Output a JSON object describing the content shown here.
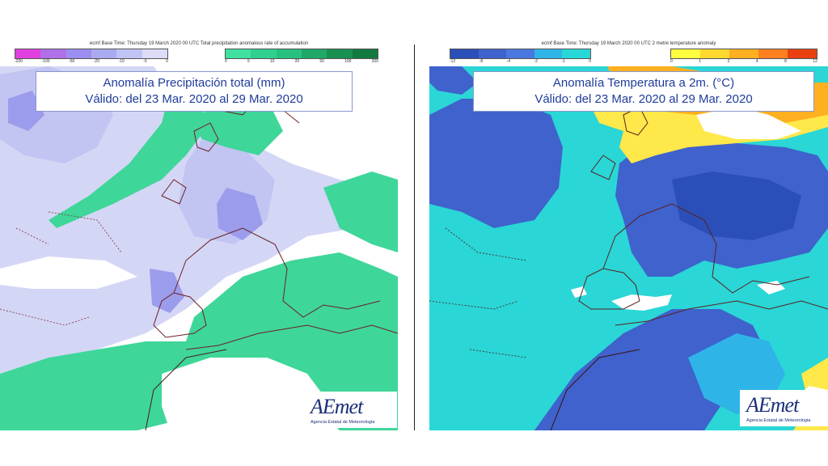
{
  "panels": [
    {
      "header": "ecmf Base Time: Thursday 19 March 2020 00 UTC Total precipitation anomalous rate of accumulation",
      "title_line1": "Anomalía Precipitación total (mm)",
      "title_line2": "Válido: del 23 Mar. 2020 al 29 Mar. 2020",
      "scale_negative": {
        "ticks": [
          "-200",
          "-100",
          "-50",
          "-20",
          "-10",
          "-5",
          "0"
        ],
        "colors": [
          "#e040e0",
          "#b070e8",
          "#9c8ef0",
          "#aaaaf0",
          "#c0c4f4",
          "#dcdcf8"
        ]
      },
      "scale_positive": {
        "ticks": [
          "0",
          "5",
          "10",
          "20",
          "50",
          "100",
          "200"
        ],
        "colors": [
          "#40e0a0",
          "#30d090",
          "#28c080",
          "#20a868",
          "#189050",
          "#107a40"
        ]
      },
      "logo_word": "AEmet",
      "logo_sub": "Agencia Estatal de Meteorología"
    },
    {
      "header": "ecmf Base Time: Thursday 19 March 2020 00 UTC 2 metre temperature anomaly",
      "title_line1": "Anomalía Temperatura a 2m. (°C)",
      "title_line2": "Válido: del 23 Mar. 2020 al 29 Mar. 2020",
      "scale_negative": {
        "ticks": [
          "-12",
          "-8",
          "-4",
          "-2",
          "-1",
          "0"
        ],
        "colors": [
          "#2a4fb8",
          "#3f62cc",
          "#4a78e0",
          "#2fb4e8",
          "#28d8d8"
        ]
      },
      "scale_positive": {
        "ticks": [
          "0",
          "1",
          "2",
          "4",
          "8",
          "12"
        ],
        "colors": [
          "#ffff40",
          "#ffd830",
          "#ffb020",
          "#ff8020",
          "#e84010"
        ]
      },
      "logo_word": "AEmet",
      "logo_sub": "Agencia Estatal de Meteorología"
    }
  ]
}
